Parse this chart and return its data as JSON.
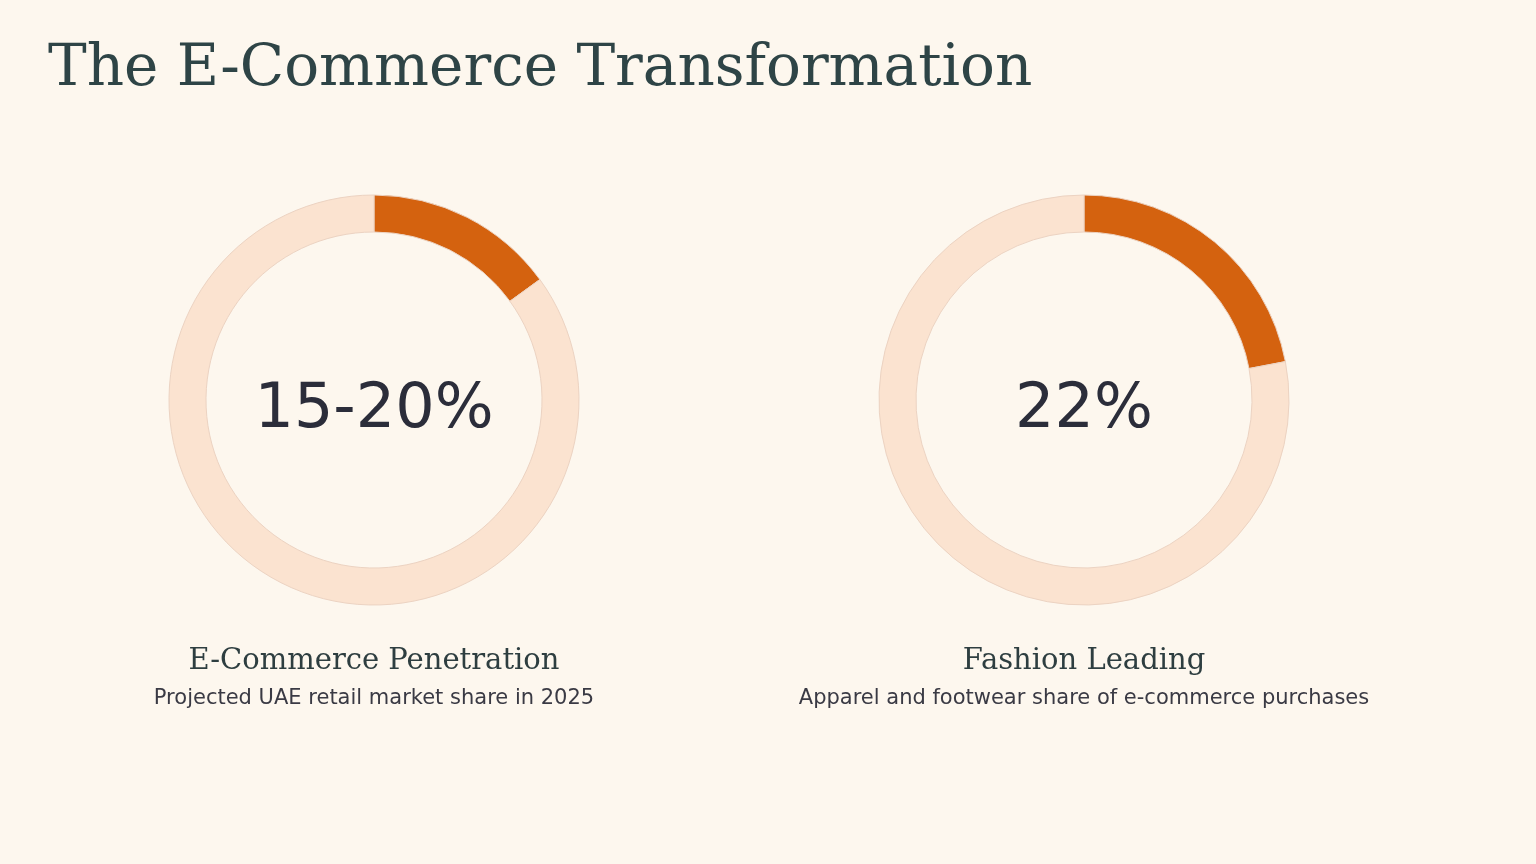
{
  "chart_data": [
    {
      "type": "other",
      "title": "The E-Commerce Transformation"
    },
    {
      "type": "donut",
      "title": "E-Commerce Penetration",
      "subtitle": "Projected UAE retail market share in 2025",
      "categories": [
        null,
        null
      ],
      "values": [
        15,
        85
      ],
      "colors": [
        "#d4620f",
        "#fbe3d0"
      ],
      "annotations": [
        "15-20%"
      ]
    },
    {
      "type": "donut",
      "title": "Fashion Leading",
      "subtitle": "Apparel and footwear share of e-commerce purchases",
      "categories": [
        null,
        null
      ],
      "values": [
        22,
        78
      ],
      "colors": [
        "#d4620f",
        "#fbe3d0"
      ],
      "annotations": [
        "22%"
      ]
    }
  ]
}
